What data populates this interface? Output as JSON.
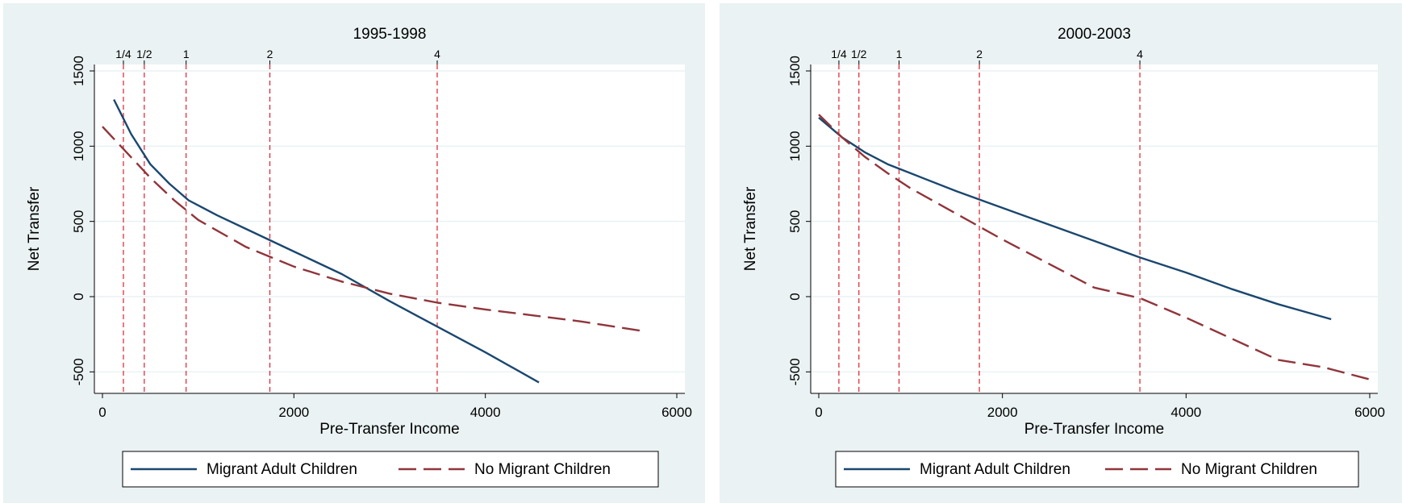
{
  "chart_data": [
    {
      "type": "line",
      "title": "1995-1998",
      "xlabel": "Pre-Transfer Income",
      "ylabel": "Net Transfer",
      "xlim": [
        0,
        6000
      ],
      "ylim": [
        -600,
        1500
      ],
      "xticks": [
        0,
        2000,
        4000,
        6000
      ],
      "yticks": [
        -500,
        0,
        500,
        1000,
        1500
      ],
      "grid": "horizontal",
      "legend_position": "bottom",
      "reference_lines": [
        {
          "label": "1/4",
          "x": 219
        },
        {
          "label": "1/2",
          "x": 437
        },
        {
          "label": "1",
          "x": 874
        },
        {
          "label": "2",
          "x": 1749
        },
        {
          "label": "4",
          "x": 3497
        }
      ],
      "series": [
        {
          "name": "Migrant Adult Children",
          "color": "#1a476f",
          "style": "solid",
          "x": [
            120,
            300,
            500,
            700,
            900,
            1200,
            1500,
            2000,
            2500,
            3000,
            3500,
            4000,
            4560
          ],
          "y": [
            1310,
            1080,
            880,
            750,
            640,
            540,
            450,
            300,
            150,
            -30,
            -200,
            -370,
            -570
          ]
        },
        {
          "name": "No Migrant Children",
          "color": "#90353b",
          "style": "dashed",
          "x": [
            0,
            250,
            500,
            750,
            1000,
            1500,
            2000,
            2500,
            3000,
            3500,
            4000,
            4500,
            5000,
            5660
          ],
          "y": [
            1130,
            960,
            790,
            640,
            510,
            330,
            200,
            100,
            20,
            -40,
            -85,
            -125,
            -165,
            -230
          ]
        }
      ]
    },
    {
      "type": "line",
      "title": "2000-2003",
      "xlabel": "Pre-Transfer Income",
      "ylabel": "Net Transfer",
      "xlim": [
        0,
        6000
      ],
      "ylim": [
        -600,
        1500
      ],
      "xticks": [
        0,
        2000,
        4000,
        6000
      ],
      "yticks": [
        -500,
        0,
        500,
        1000,
        1500
      ],
      "grid": "horizontal",
      "legend_position": "bottom",
      "reference_lines": [
        {
          "label": "1/4",
          "x": 219
        },
        {
          "label": "1/2",
          "x": 437
        },
        {
          "label": "1",
          "x": 874
        },
        {
          "label": "2",
          "x": 1749
        },
        {
          "label": "4",
          "x": 3497
        }
      ],
      "series": [
        {
          "name": "Migrant Adult Children",
          "color": "#1a476f",
          "style": "solid",
          "x": [
            0,
            250,
            500,
            750,
            1000,
            1500,
            2000,
            2500,
            3000,
            3500,
            4000,
            4500,
            5000,
            5580
          ],
          "y": [
            1190,
            1060,
            960,
            880,
            820,
            700,
            590,
            480,
            370,
            260,
            160,
            50,
            -50,
            -150
          ]
        },
        {
          "name": "No Migrant Children",
          "color": "#90353b",
          "style": "dashed",
          "x": [
            0,
            250,
            500,
            750,
            1000,
            1500,
            2000,
            2500,
            3000,
            3500,
            4000,
            4500,
            5000,
            5500,
            6000
          ],
          "y": [
            1210,
            1060,
            930,
            820,
            720,
            550,
            380,
            220,
            60,
            -10,
            -140,
            -280,
            -420,
            -470,
            -550
          ]
        }
      ]
    }
  ]
}
